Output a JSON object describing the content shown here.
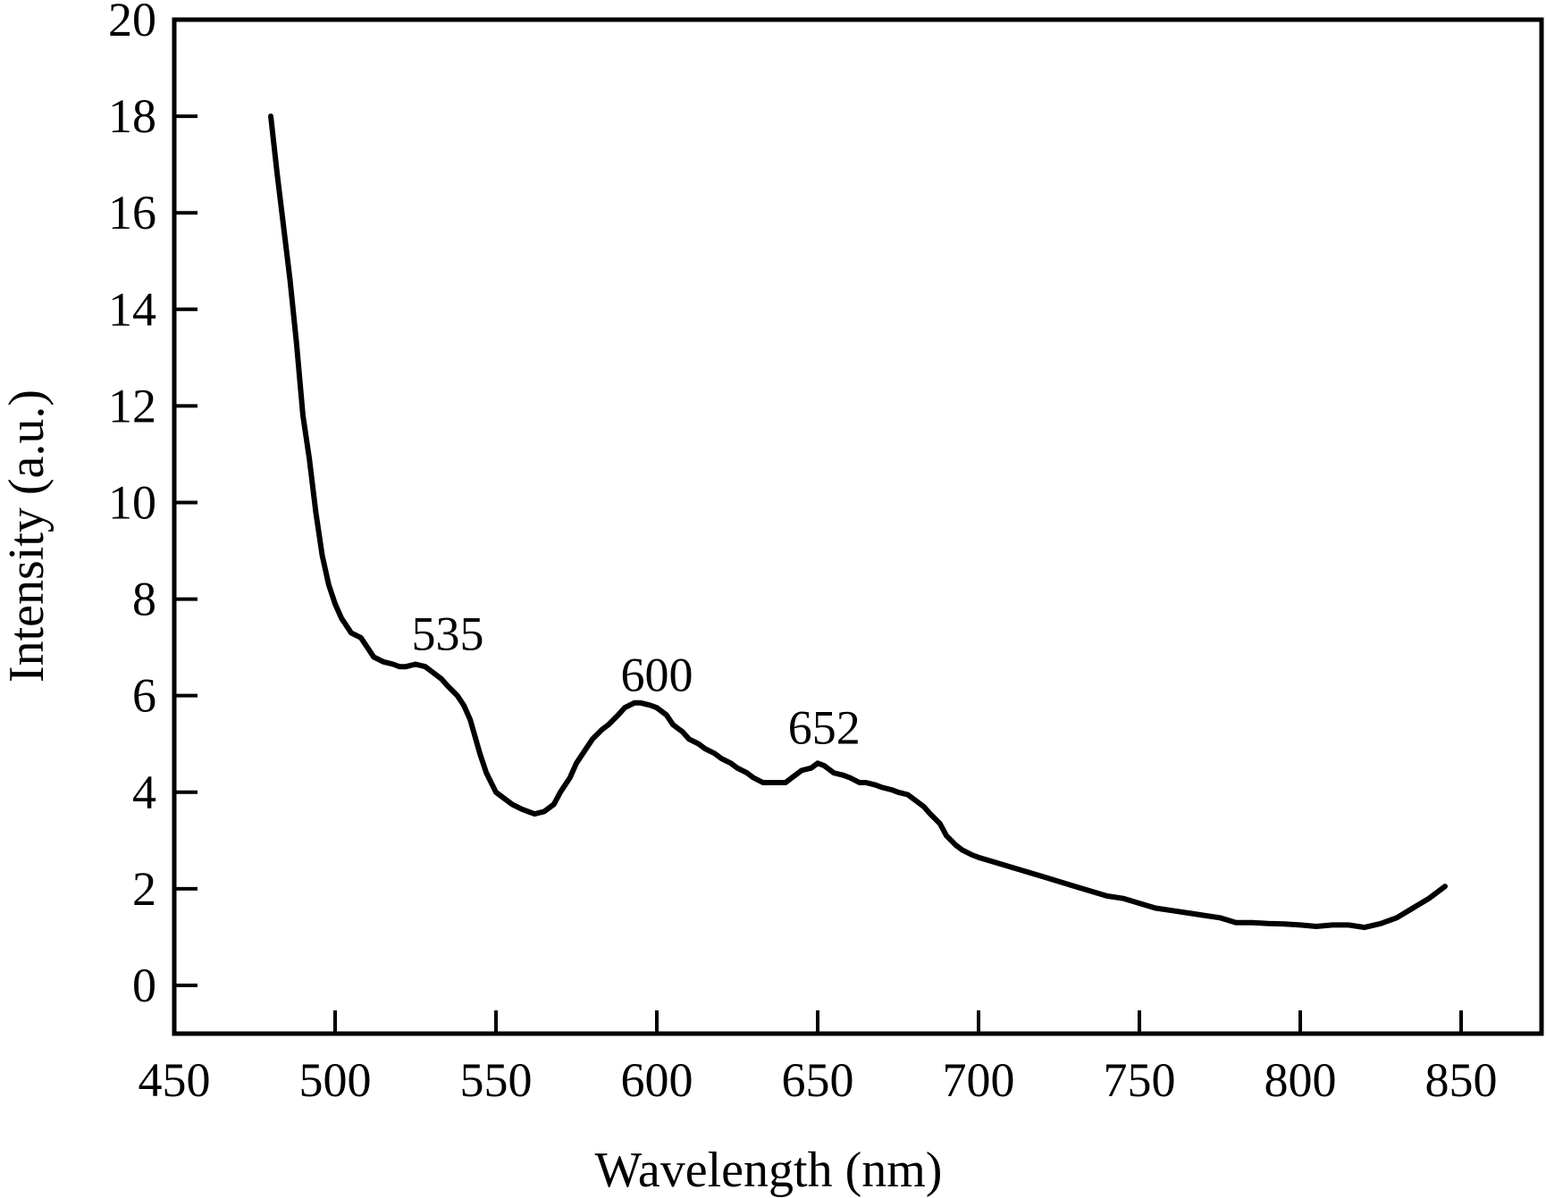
{
  "chart_data": {
    "type": "line",
    "xlabel": "Wavelength (nm)",
    "ylabel": "Intensity (a.u.)",
    "xlim": [
      450,
      875
    ],
    "ylim": [
      -1,
      20
    ],
    "x_ticks": [
      450,
      500,
      550,
      600,
      650,
      700,
      750,
      800,
      850
    ],
    "y_ticks": [
      0,
      2,
      4,
      6,
      8,
      10,
      12,
      14,
      16,
      18,
      20
    ],
    "grid": false,
    "line_color": "#000000",
    "series": [
      {
        "x": [
          480,
          482,
          484,
          486,
          488,
          490,
          492,
          494,
          496,
          498,
          500,
          502,
          505,
          508,
          510,
          512,
          515,
          518,
          520,
          522,
          525,
          528,
          530,
          533,
          535,
          538,
          540,
          542,
          545,
          547,
          550,
          552,
          555,
          558,
          560,
          562,
          565,
          568,
          570,
          573,
          575,
          578,
          580,
          583,
          585,
          588,
          590,
          593,
          595,
          598,
          600,
          603,
          605,
          608,
          610,
          613,
          615,
          618,
          620,
          623,
          625,
          628,
          630,
          633,
          635,
          638,
          640,
          643,
          645,
          648,
          650,
          652,
          655,
          658,
          660,
          663,
          665,
          668,
          670,
          673,
          675,
          678,
          680,
          683,
          685,
          688,
          690,
          693,
          695,
          698,
          700,
          705,
          710,
          715,
          720,
          725,
          730,
          735,
          740,
          745,
          750,
          755,
          760,
          765,
          770,
          775,
          780,
          785,
          790,
          795,
          800,
          805,
          810,
          815,
          820,
          825,
          830,
          835,
          840,
          845
        ],
        "y": [
          18.0,
          16.8,
          15.7,
          14.6,
          13.3,
          11.8,
          10.9,
          9.8,
          8.9,
          8.3,
          7.9,
          7.6,
          7.3,
          7.2,
          7.0,
          6.8,
          6.7,
          6.65,
          6.6,
          6.6,
          6.65,
          6.6,
          6.5,
          6.35,
          6.2,
          6.0,
          5.8,
          5.5,
          4.8,
          4.4,
          4.0,
          3.9,
          3.75,
          3.65,
          3.6,
          3.55,
          3.6,
          3.75,
          4.0,
          4.3,
          4.6,
          4.9,
          5.1,
          5.3,
          5.4,
          5.6,
          5.75,
          5.85,
          5.85,
          5.8,
          5.75,
          5.6,
          5.4,
          5.25,
          5.1,
          5.0,
          4.9,
          4.8,
          4.7,
          4.6,
          4.5,
          4.4,
          4.3,
          4.2,
          4.2,
          4.2,
          4.2,
          4.35,
          4.45,
          4.5,
          4.6,
          4.55,
          4.4,
          4.35,
          4.3,
          4.2,
          4.2,
          4.15,
          4.1,
          4.05,
          4.0,
          3.95,
          3.85,
          3.7,
          3.55,
          3.35,
          3.1,
          2.9,
          2.8,
          2.7,
          2.65,
          2.55,
          2.45,
          2.35,
          2.25,
          2.15,
          2.05,
          1.95,
          1.85,
          1.8,
          1.7,
          1.6,
          1.55,
          1.5,
          1.45,
          1.4,
          1.3,
          1.3,
          1.28,
          1.27,
          1.25,
          1.22,
          1.25,
          1.25,
          1.2,
          1.28,
          1.4,
          1.6,
          1.8,
          2.05
        ]
      }
    ],
    "annotations": [
      {
        "text": "535",
        "x": 535,
        "y": 6.95
      },
      {
        "text": "600",
        "x": 600,
        "y": 6.1
      },
      {
        "text": "652",
        "x": 652,
        "y": 5.0
      }
    ]
  }
}
